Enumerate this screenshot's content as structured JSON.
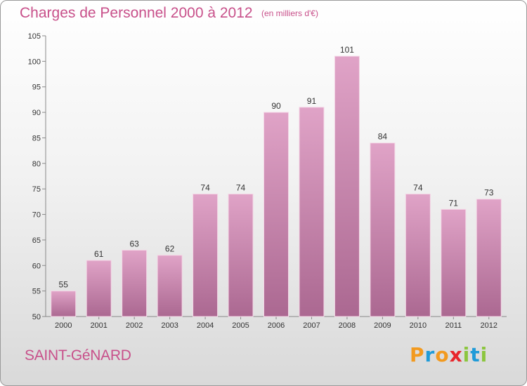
{
  "title": "Charges de Personnel 2000 à 2012",
  "subtitle": "(en milliers d'€)",
  "town": "SAINT-GéNARD",
  "logo": {
    "text": "Proxiti",
    "colors": [
      "#f29a1f",
      "#1f9bd8",
      "#f29a1f",
      "#e8262c",
      "#8cc63f",
      "#1f9bd8",
      "#8cc63f"
    ]
  },
  "colors": {
    "accent": "#c8508a",
    "bar_top": "#e0a3c7",
    "bar_bottom": "#ab6891"
  },
  "chart_data": {
    "type": "bar",
    "categories": [
      "2000",
      "2001",
      "2002",
      "2003",
      "2004",
      "2005",
      "2006",
      "2007",
      "2008",
      "2009",
      "2010",
      "2011",
      "2012"
    ],
    "values": [
      55,
      61,
      63,
      62,
      74,
      74,
      90,
      91,
      101,
      84,
      74,
      71,
      73
    ],
    "ylim": [
      50,
      105
    ],
    "yticks": [
      50,
      55,
      60,
      65,
      70,
      75,
      80,
      85,
      90,
      95,
      100,
      105
    ],
    "grid": false,
    "legend": "none"
  }
}
